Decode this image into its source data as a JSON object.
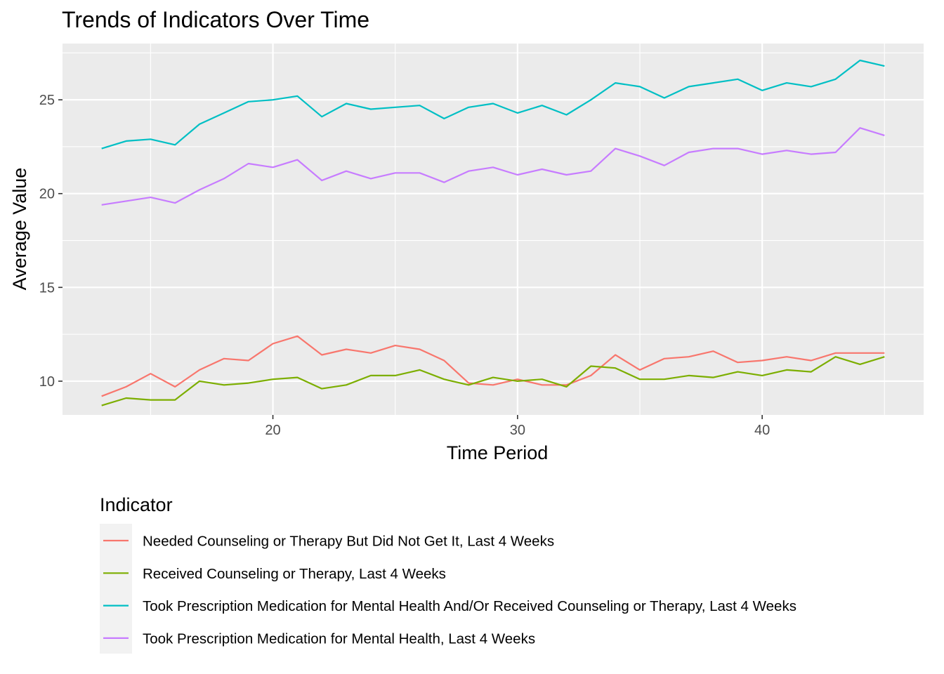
{
  "chart_data": {
    "type": "line",
    "title": "Trends of Indicators Over Time",
    "xlabel": "Time Period",
    "ylabel": "Average Value",
    "xlim": [
      11.4,
      46.6
    ],
    "ylim": [
      8.2,
      28.0
    ],
    "x_ticks": [
      20,
      30,
      40
    ],
    "y_ticks": [
      10,
      15,
      20,
      25
    ],
    "x_minor": [
      15,
      25,
      35,
      45
    ],
    "y_minor": [
      12.5,
      17.5,
      22.5,
      27.5
    ],
    "grid": true,
    "legend_title": "Indicator",
    "legend_position": "bottom-left",
    "x": [
      13,
      14,
      15,
      16,
      17,
      18,
      19,
      20,
      21,
      22,
      23,
      24,
      25,
      26,
      27,
      28,
      29,
      30,
      31,
      32,
      33,
      34,
      35,
      36,
      37,
      38,
      39,
      40,
      41,
      42,
      43,
      44,
      45
    ],
    "series": [
      {
        "name": "Needed Counseling or Therapy But Did Not Get It, Last 4 Weeks",
        "color": "#F8766D",
        "values": [
          9.2,
          9.7,
          10.4,
          9.7,
          10.6,
          11.2,
          11.1,
          12.0,
          12.4,
          11.4,
          11.7,
          11.5,
          11.9,
          11.7,
          11.1,
          9.9,
          9.8,
          10.1,
          9.8,
          9.8,
          10.3,
          11.4,
          10.6,
          11.2,
          11.3,
          11.6,
          11.0,
          11.1,
          11.3,
          11.1,
          11.5,
          11.5,
          11.5
        ]
      },
      {
        "name": "Received Counseling or Therapy, Last 4 Weeks",
        "color": "#7CAE00",
        "values": [
          8.7,
          9.1,
          9.0,
          9.0,
          10.0,
          9.8,
          9.9,
          10.1,
          10.2,
          9.6,
          9.8,
          10.3,
          10.3,
          10.6,
          10.1,
          9.8,
          10.2,
          10.0,
          10.1,
          9.7,
          10.8,
          10.7,
          10.1,
          10.1,
          10.3,
          10.2,
          10.5,
          10.3,
          10.6,
          10.5,
          11.3,
          10.9,
          11.3
        ]
      },
      {
        "name": "Took Prescription Medication for Mental Health And/Or Received Counseling or Therapy, Last 4 Weeks",
        "color": "#00BFC4",
        "values": [
          22.4,
          22.8,
          22.9,
          22.6,
          23.7,
          24.3,
          24.9,
          25.0,
          25.2,
          24.1,
          24.8,
          24.5,
          24.6,
          24.7,
          24.0,
          24.6,
          24.8,
          24.3,
          24.7,
          24.2,
          25.0,
          25.9,
          25.7,
          25.1,
          25.7,
          25.9,
          26.1,
          25.5,
          25.9,
          25.7,
          26.1,
          27.1,
          26.8
        ]
      },
      {
        "name": "Took Prescription Medication for Mental Health, Last 4 Weeks",
        "color": "#C77CFF",
        "values": [
          19.4,
          19.6,
          19.8,
          19.5,
          20.2,
          20.8,
          21.6,
          21.4,
          21.8,
          20.7,
          21.2,
          20.8,
          21.1,
          21.1,
          20.6,
          21.2,
          21.4,
          21.0,
          21.3,
          21.0,
          21.2,
          22.4,
          22.0,
          21.5,
          22.2,
          22.4,
          22.4,
          22.1,
          22.3,
          22.1,
          22.2,
          23.5,
          23.1
        ]
      }
    ]
  },
  "colors": {
    "panel_background": "#EBEBEB",
    "grid_major": "#FFFFFF",
    "legend_key_background": "#F2F2F2"
  }
}
